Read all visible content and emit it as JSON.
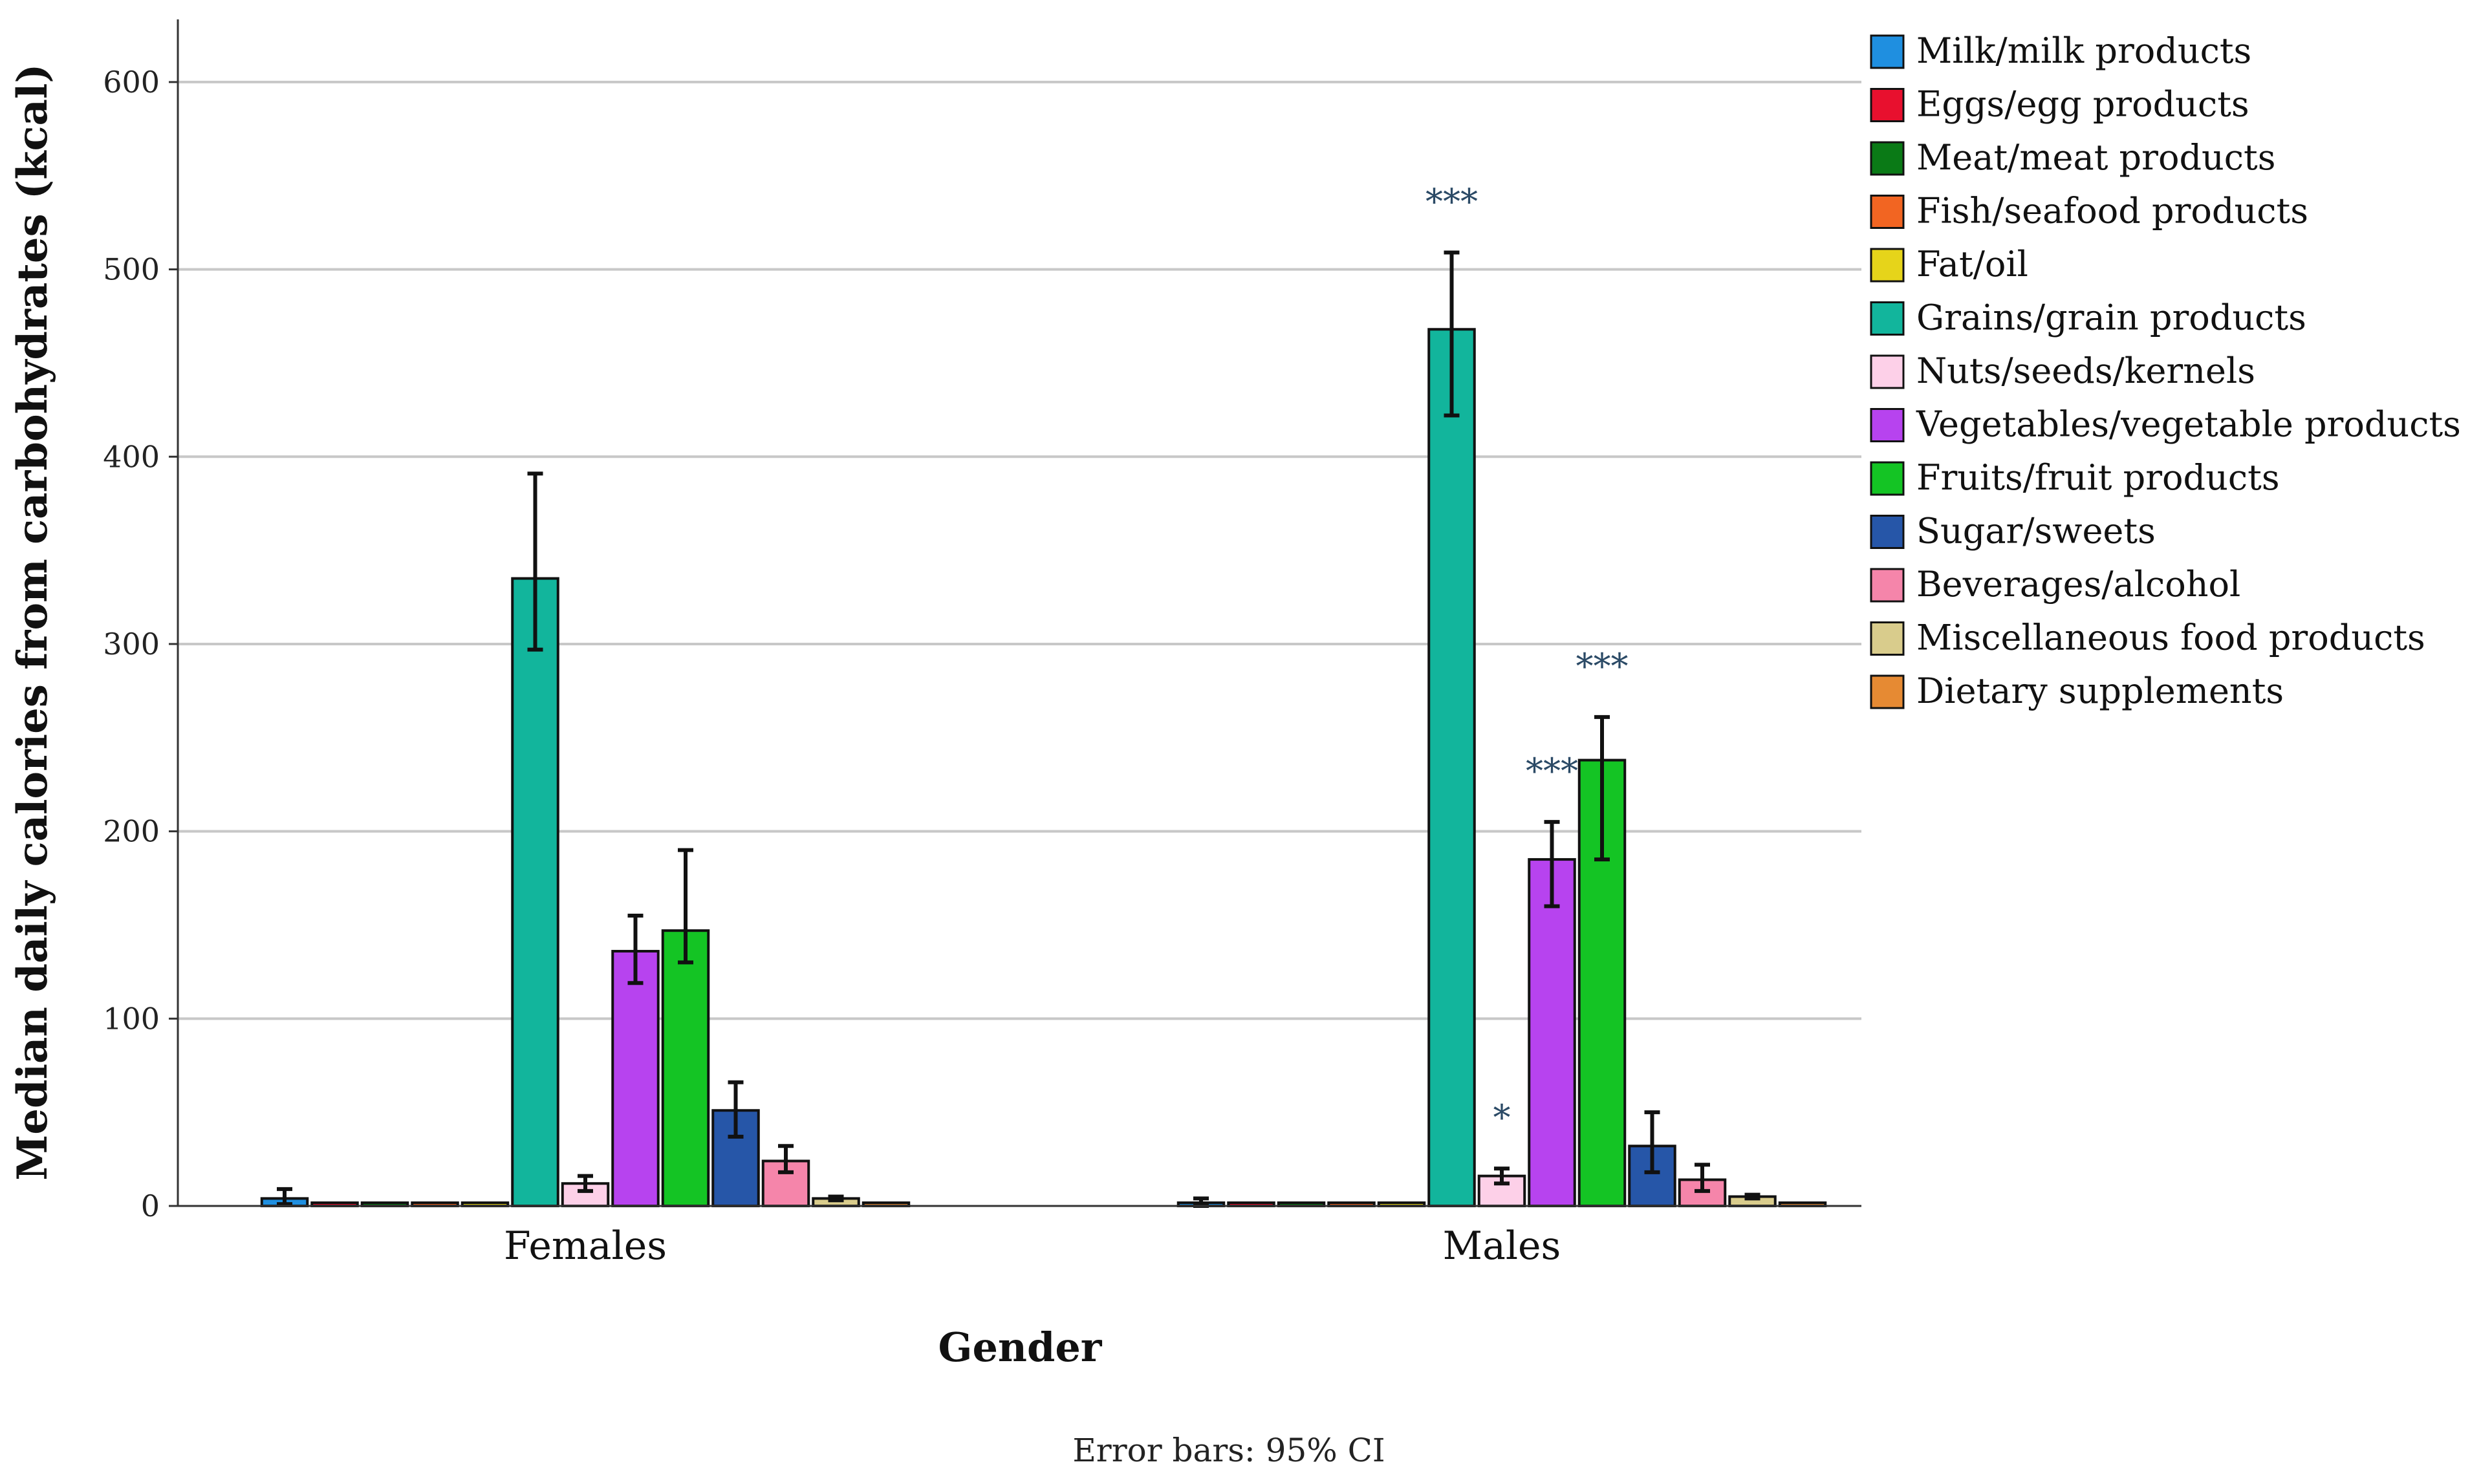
{
  "chart_data": {
    "type": "bar",
    "title": "",
    "xlabel": "Gender",
    "ylabel": "Median daily calories from carbohydrates (kcal)",
    "ylim": [
      0,
      630
    ],
    "yticks": [
      0,
      100,
      200,
      300,
      400,
      500,
      600
    ],
    "grid": true,
    "legend_position": "right",
    "footnote": "Error bars: 95% CI",
    "categories": [
      "Females",
      "Males"
    ],
    "series": [
      {
        "name": "Milk/milk products",
        "color": "#1f8fe0",
        "values": [
          4,
          1
        ],
        "ci": [
          [
            1,
            9
          ],
          [
            0,
            4
          ]
        ],
        "sig": [
          "",
          ""
        ]
      },
      {
        "name": "Eggs/egg products",
        "color": "#e8102e",
        "values": [
          0,
          0
        ],
        "ci": [
          [
            0,
            0
          ],
          [
            0,
            0
          ]
        ],
        "sig": [
          "",
          ""
        ]
      },
      {
        "name": "Meat/meat products",
        "color": "#0a7a16",
        "values": [
          0,
          0
        ],
        "ci": [
          [
            0,
            0
          ],
          [
            0,
            0
          ]
        ],
        "sig": [
          "",
          ""
        ]
      },
      {
        "name": "Fish/seafood products",
        "color": "#f26522",
        "values": [
          0,
          0
        ],
        "ci": [
          [
            0,
            0
          ],
          [
            0,
            0
          ]
        ],
        "sig": [
          "",
          ""
        ]
      },
      {
        "name": "Fat/oil",
        "color": "#e6d41a",
        "values": [
          0,
          0
        ],
        "ci": [
          [
            0,
            0
          ],
          [
            0,
            0
          ]
        ],
        "sig": [
          "",
          ""
        ]
      },
      {
        "name": "Grains/grain products",
        "color": "#12b59c",
        "values": [
          335,
          468
        ],
        "ci": [
          [
            297,
            391
          ],
          [
            422,
            509
          ]
        ],
        "sig": [
          "",
          "***"
        ]
      },
      {
        "name": "Nuts/seeds/kernels",
        "color": "#fdd0e8",
        "values": [
          12,
          16
        ],
        "ci": [
          [
            8,
            16
          ],
          [
            12,
            20
          ]
        ],
        "sig": [
          "",
          "*"
        ]
      },
      {
        "name": "Vegetables/vegetable products",
        "color": "#b743ef",
        "values": [
          136,
          185
        ],
        "ci": [
          [
            119,
            155
          ],
          [
            160,
            205
          ]
        ],
        "sig": [
          "",
          "***"
        ]
      },
      {
        "name": "Fruits/fruit products",
        "color": "#14c424",
        "values": [
          147,
          238
        ],
        "ci": [
          [
            130,
            190
          ],
          [
            185,
            261
          ]
        ],
        "sig": [
          "",
          "***"
        ]
      },
      {
        "name": "Sugar/sweets",
        "color": "#2656a8",
        "values": [
          51,
          32
        ],
        "ci": [
          [
            37,
            66
          ],
          [
            18,
            50
          ]
        ],
        "sig": [
          "",
          ""
        ]
      },
      {
        "name": "Beverages/alcohol",
        "color": "#f585aa",
        "values": [
          24,
          14
        ],
        "ci": [
          [
            18,
            32
          ],
          [
            8,
            22
          ]
        ],
        "sig": [
          "",
          ""
        ]
      },
      {
        "name": "Miscellaneous food products",
        "color": "#d9cc8c",
        "values": [
          4,
          5
        ],
        "ci": [
          [
            3,
            5
          ],
          [
            4,
            6
          ]
        ],
        "sig": [
          "",
          ""
        ]
      },
      {
        "name": "Dietary supplements",
        "color": "#e68a33",
        "values": [
          0,
          0
        ],
        "ci": [
          [
            0,
            0
          ],
          [
            0,
            0
          ]
        ],
        "sig": [
          "",
          ""
        ]
      }
    ]
  }
}
